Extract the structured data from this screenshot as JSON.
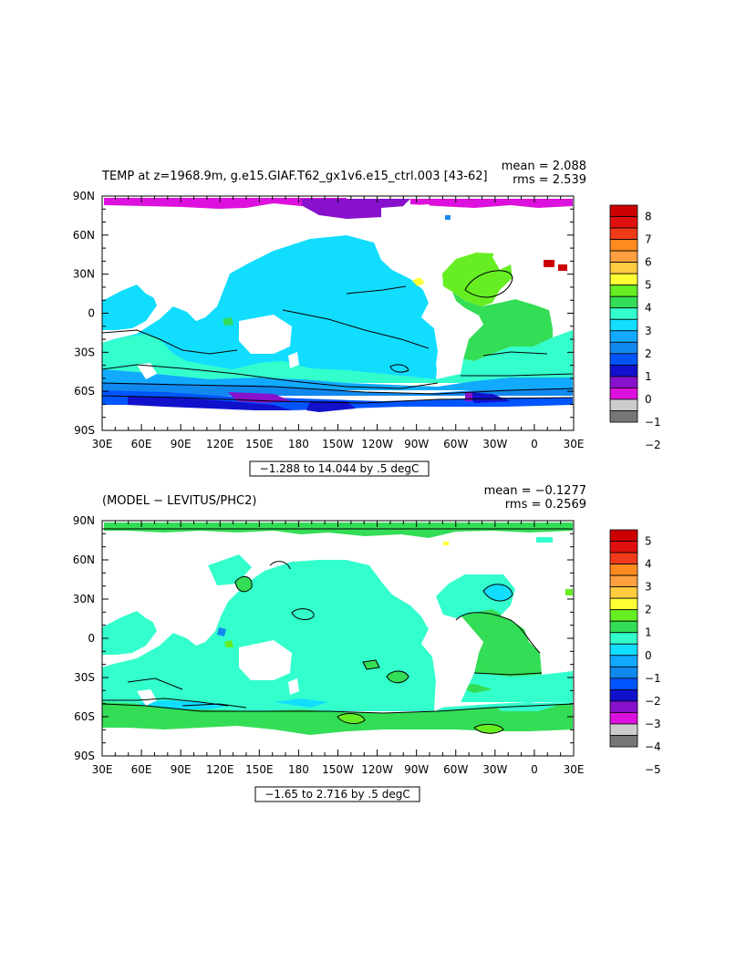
{
  "panels": [
    {
      "id": "top",
      "title": "TEMP at z=1968.9m, g.e15.GIAF.T62_gx1v6.e15_ctrl.003 [43-62]",
      "mean_text": "mean = 2.088",
      "rms_text": "rms = 2.539",
      "contour_info": "−1.288 to 14.044 by .5 degC",
      "x_tick_labels": [
        "30E",
        "60E",
        "90E",
        "120E",
        "150E",
        "180",
        "150W",
        "120W",
        "90W",
        "60W",
        "30W",
        "0",
        "30E"
      ],
      "y_tick_labels": [
        "90N",
        "60N",
        "30N",
        "0",
        "30S",
        "60S",
        "90S"
      ],
      "colorbar_labels": [
        "8",
        "7",
        "6",
        "5",
        "4",
        "3",
        "2",
        "1",
        "0",
        "−1",
        "−2"
      ],
      "colorbar_colors": [
        "#cc0000",
        "#e01010",
        "#f03a1a",
        "#ff8a20",
        "#ffa040",
        "#ffcc40",
        "#ffff33",
        "#66ee22",
        "#33dd55",
        "#33ffcc",
        "#11ddff",
        "#11aaff",
        "#1188ee",
        "#0055ff",
        "#1111cc",
        "#8811cc",
        "#dd11dd",
        "#cccccc",
        "#777777"
      ]
    },
    {
      "id": "bottom",
      "title": "(MODEL − LEVITUS/PHC2)",
      "mean_text": "mean = −0.1277",
      "rms_text": "rms = 0.2569",
      "contour_info": "−1.65 to 2.716 by .5 degC",
      "x_tick_labels": [
        "30E",
        "60E",
        "90E",
        "120E",
        "150E",
        "180",
        "150W",
        "120W",
        "90W",
        "60W",
        "30W",
        "0",
        "30E"
      ],
      "y_tick_labels": [
        "90N",
        "60N",
        "30N",
        "0",
        "30S",
        "60S",
        "90S"
      ],
      "colorbar_labels": [
        "5",
        "4",
        "3",
        "2",
        "1",
        "0",
        "−1",
        "−2",
        "−3",
        "−4",
        "−5"
      ],
      "colorbar_colors": [
        "#cc0000",
        "#e01010",
        "#f03a1a",
        "#ff8a20",
        "#ffa040",
        "#ffcc40",
        "#ffff33",
        "#66ee22",
        "#33dd55",
        "#33ffcc",
        "#11ddff",
        "#11aaff",
        "#1188ee",
        "#0055ff",
        "#1111cc",
        "#8811cc",
        "#dd11dd",
        "#cccccc",
        "#777777"
      ]
    }
  ]
}
